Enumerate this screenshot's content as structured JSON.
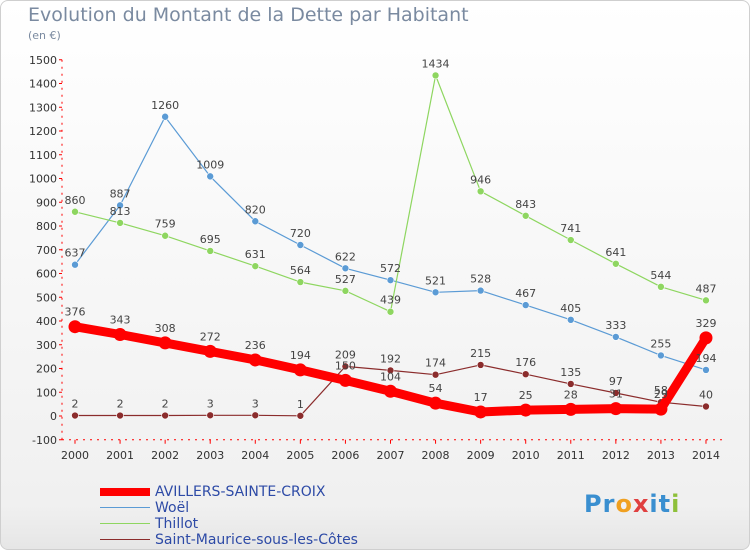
{
  "chart_data": {
    "type": "line",
    "title": "Evolution du Montant de la Dette par Habitant",
    "subtitle": "(en €)",
    "x": [
      "2000",
      "2001",
      "2002",
      "2003",
      "2004",
      "2005",
      "2006",
      "2007",
      "2008",
      "2009",
      "2010",
      "2011",
      "2012",
      "2013",
      "2014"
    ],
    "ylim": [
      -100,
      1500
    ],
    "yticks": [
      -100,
      0,
      100,
      200,
      300,
      400,
      500,
      600,
      700,
      800,
      900,
      1000,
      1100,
      1200,
      1300,
      1400,
      1500
    ],
    "grid": false,
    "legend_position": "bottom-left",
    "series": [
      {
        "name": "Woël",
        "color": "#5b9bd5",
        "values": [
          637,
          887,
          1260,
          1009,
          820,
          720,
          622,
          572,
          521,
          528,
          467,
          405,
          333,
          255,
          194
        ]
      },
      {
        "name": "Thillot",
        "color": "#8ed660",
        "values": [
          860,
          813,
          759,
          695,
          631,
          564,
          527,
          439,
          1434,
          946,
          843,
          741,
          641,
          544,
          487
        ]
      },
      {
        "name": "Saint-Maurice-sous-les-Côtes",
        "color": "#8b2c2c",
        "values": [
          2,
          2,
          2,
          3,
          3,
          1,
          209,
          192,
          174,
          215,
          176,
          135,
          97,
          58,
          40
        ]
      },
      {
        "name": "AVILLERS-SAINTE-CROIX",
        "color": "#ff0000",
        "values": [
          376,
          343,
          308,
          272,
          236,
          194,
          150,
          104,
          54,
          17,
          25,
          28,
          31,
          29,
          329
        ]
      }
    ]
  },
  "legend": {
    "items": [
      "AVILLERS-SAINTE-CROIX",
      "Woël",
      "Thillot",
      "Saint-Maurice-sous-les-Côtes"
    ]
  },
  "logo": {
    "letters": [
      "P",
      "r",
      "o",
      "x",
      "i",
      "t",
      "i"
    ]
  }
}
